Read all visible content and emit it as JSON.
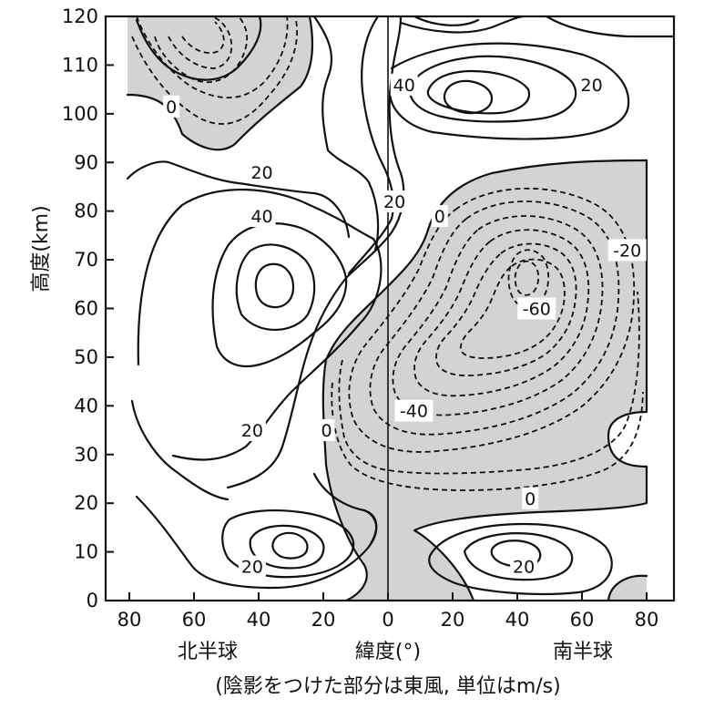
{
  "chart_data": {
    "type": "contour",
    "ylabel": "高度(km)",
    "xlabel": "緯度(°)",
    "x_caption_left": "北半球",
    "x_caption_right": "南半球",
    "note": "(陰影をつけた部分は東風, 単位はm/s)",
    "x_ticks": [
      {
        "value": -80,
        "label": "80"
      },
      {
        "value": -60,
        "label": "60"
      },
      {
        "value": -40,
        "label": "40"
      },
      {
        "value": -20,
        "label": "20"
      },
      {
        "value": 0,
        "label": "0"
      },
      {
        "value": 20,
        "label": "20"
      },
      {
        "value": 40,
        "label": "40"
      },
      {
        "value": 60,
        "label": "60"
      },
      {
        "value": 80,
        "label": "80"
      }
    ],
    "y_ticks": [
      0,
      10,
      20,
      30,
      40,
      50,
      60,
      70,
      80,
      90,
      100,
      110,
      120
    ],
    "xlim": [
      -88,
      88
    ],
    "ylim": [
      0,
      120
    ],
    "contour_labels": [
      {
        "text": "0",
        "x": -67,
        "y": 101.5
      },
      {
        "text": "40",
        "x": 5,
        "y": 106
      },
      {
        "text": "20",
        "x": 63,
        "y": 106
      },
      {
        "text": "20",
        "x": -39,
        "y": 88
      },
      {
        "text": "20",
        "x": 2,
        "y": 82
      },
      {
        "text": "0",
        "x": 16,
        "y": 79
      },
      {
        "text": "40",
        "x": -39,
        "y": 79
      },
      {
        "text": "-20",
        "x": 74,
        "y": 72
      },
      {
        "text": "-60",
        "x": 46,
        "y": 60
      },
      {
        "text": "-40",
        "x": 8,
        "y": 39
      },
      {
        "text": "20",
        "x": -42,
        "y": 35
      },
      {
        "text": "0",
        "x": -19,
        "y": 35
      },
      {
        "text": "0",
        "x": 44,
        "y": 21
      },
      {
        "text": "20",
        "x": -42,
        "y": 7
      },
      {
        "text": "20",
        "x": 42,
        "y": 7
      }
    ]
  }
}
